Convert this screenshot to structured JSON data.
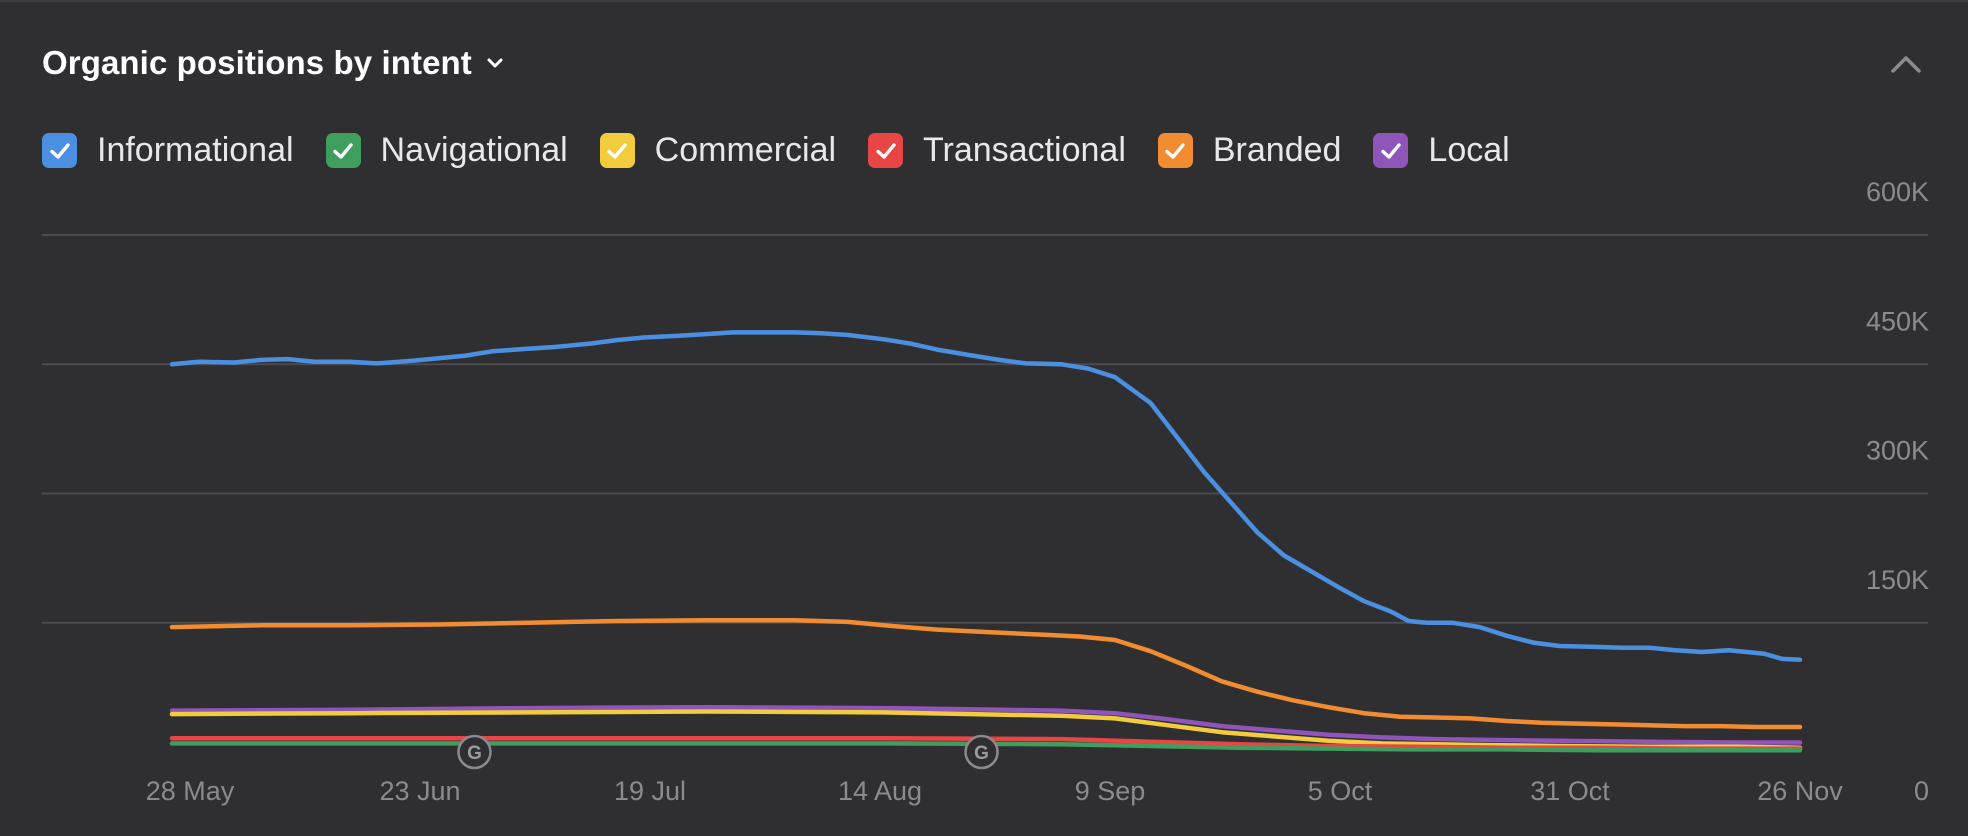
{
  "header": {
    "title": "Organic positions by intent"
  },
  "legend": [
    {
      "label": "Informational",
      "color": "#4a8fe0"
    },
    {
      "label": "Navigational",
      "color": "#3f9d5e"
    },
    {
      "label": "Commercial",
      "color": "#f2cc3c"
    },
    {
      "label": "Transactional",
      "color": "#e84545"
    },
    {
      "label": "Branded",
      "color": "#f28c30"
    },
    {
      "label": "Local",
      "color": "#8f55b8"
    }
  ],
  "chart_data": {
    "type": "line",
    "title": "Organic positions by intent",
    "x_labels": [
      "28 May",
      "23 Jun",
      "19 Jul",
      "14 Aug",
      "9 Sep",
      "5 Oct",
      "31 Oct",
      "26 Nov"
    ],
    "x_range": [
      0,
      183
    ],
    "ylim": [
      0,
      600000
    ],
    "y_ticks": [
      0,
      150000,
      300000,
      450000,
      600000
    ],
    "y_tick_labels": [
      "0",
      "150K",
      "300K",
      "450K",
      "600K"
    ],
    "grid": true,
    "annotations": [
      {
        "label": "G",
        "day": 34,
        "note": "Google update"
      },
      {
        "label": "G",
        "day": 91,
        "note": "Google update"
      }
    ],
    "series": [
      {
        "name": "Informational",
        "color": "#4a8fe0",
        "points": [
          [
            0,
            450000
          ],
          [
            3,
            453000
          ],
          [
            7,
            452000
          ],
          [
            10,
            455000
          ],
          [
            13,
            456000
          ],
          [
            16,
            453000
          ],
          [
            20,
            453000
          ],
          [
            23,
            451000
          ],
          [
            27,
            454000
          ],
          [
            30,
            457000
          ],
          [
            33,
            460000
          ],
          [
            36,
            465000
          ],
          [
            40,
            468000
          ],
          [
            43,
            470000
          ],
          [
            47,
            474000
          ],
          [
            50,
            478000
          ],
          [
            53,
            481000
          ],
          [
            57,
            483000
          ],
          [
            60,
            485000
          ],
          [
            63,
            487000
          ],
          [
            66,
            487000
          ],
          [
            70,
            487000
          ],
          [
            73,
            486000
          ],
          [
            76,
            484000
          ],
          [
            80,
            479000
          ],
          [
            83,
            474000
          ],
          [
            86,
            467000
          ],
          [
            90,
            460000
          ],
          [
            93,
            455000
          ],
          [
            96,
            451000
          ],
          [
            100,
            450000
          ],
          [
            103,
            445000
          ],
          [
            106,
            435000
          ],
          [
            110,
            405000
          ],
          [
            113,
            365000
          ],
          [
            116,
            325000
          ],
          [
            119,
            290000
          ],
          [
            122,
            255000
          ],
          [
            125,
            228000
          ],
          [
            128,
            210000
          ],
          [
            131,
            192000
          ],
          [
            134,
            175000
          ],
          [
            137,
            163000
          ],
          [
            139,
            152000
          ],
          [
            141,
            150000
          ],
          [
            144,
            150000
          ],
          [
            147,
            145000
          ],
          [
            150,
            135000
          ],
          [
            153,
            127000
          ],
          [
            156,
            123000
          ],
          [
            160,
            122000
          ],
          [
            163,
            121000
          ],
          [
            166,
            121000
          ],
          [
            169,
            118000
          ],
          [
            172,
            116000
          ],
          [
            175,
            118000
          ],
          [
            177,
            116000
          ],
          [
            179,
            114000
          ],
          [
            181,
            108000
          ],
          [
            183,
            107000
          ]
        ]
      },
      {
        "name": "Branded",
        "color": "#f28c30",
        "points": [
          [
            0,
            145000
          ],
          [
            10,
            147000
          ],
          [
            20,
            147000
          ],
          [
            30,
            148000
          ],
          [
            40,
            150000
          ],
          [
            50,
            152000
          ],
          [
            60,
            153000
          ],
          [
            70,
            153000
          ],
          [
            76,
            151000
          ],
          [
            80,
            147000
          ],
          [
            86,
            142000
          ],
          [
            92,
            139000
          ],
          [
            98,
            136000
          ],
          [
            102,
            134000
          ],
          [
            106,
            130000
          ],
          [
            110,
            117000
          ],
          [
            114,
            100000
          ],
          [
            118,
            82000
          ],
          [
            122,
            70000
          ],
          [
            126,
            60000
          ],
          [
            130,
            52000
          ],
          [
            134,
            45000
          ],
          [
            138,
            41000
          ],
          [
            142,
            40000
          ],
          [
            146,
            39000
          ],
          [
            150,
            36000
          ],
          [
            154,
            34000
          ],
          [
            158,
            33000
          ],
          [
            162,
            32000
          ],
          [
            166,
            31000
          ],
          [
            170,
            30000
          ],
          [
            174,
            30000
          ],
          [
            178,
            29000
          ],
          [
            183,
            29000
          ]
        ]
      },
      {
        "name": "Local",
        "color": "#8f55b8",
        "points": [
          [
            0,
            48000
          ],
          [
            20,
            49000
          ],
          [
            40,
            51000
          ],
          [
            60,
            52000
          ],
          [
            80,
            51000
          ],
          [
            100,
            48000
          ],
          [
            106,
            45000
          ],
          [
            112,
            38000
          ],
          [
            118,
            30000
          ],
          [
            124,
            25000
          ],
          [
            130,
            20000
          ],
          [
            136,
            17000
          ],
          [
            142,
            15000
          ],
          [
            148,
            14000
          ],
          [
            156,
            13000
          ],
          [
            166,
            12000
          ],
          [
            176,
            11000
          ],
          [
            183,
            11000
          ]
        ]
      },
      {
        "name": "Commercial",
        "color": "#f2cc3c",
        "points": [
          [
            0,
            44000
          ],
          [
            20,
            45000
          ],
          [
            40,
            46000
          ],
          [
            60,
            47000
          ],
          [
            80,
            46000
          ],
          [
            100,
            42000
          ],
          [
            106,
            39000
          ],
          [
            112,
            31000
          ],
          [
            118,
            23000
          ],
          [
            124,
            18000
          ],
          [
            130,
            13000
          ],
          [
            136,
            10000
          ],
          [
            142,
            9000
          ],
          [
            148,
            8000
          ],
          [
            156,
            7000
          ],
          [
            166,
            6000
          ],
          [
            176,
            6000
          ],
          [
            183,
            5000
          ]
        ]
      },
      {
        "name": "Transactional",
        "color": "#e84545",
        "points": [
          [
            0,
            16000
          ],
          [
            40,
            16000
          ],
          [
            80,
            16000
          ],
          [
            100,
            15000
          ],
          [
            110,
            12000
          ],
          [
            120,
            9000
          ],
          [
            130,
            7000
          ],
          [
            140,
            6000
          ],
          [
            150,
            5000
          ],
          [
            160,
            5000
          ],
          [
            170,
            4000
          ],
          [
            183,
            4000
          ]
        ]
      },
      {
        "name": "Navigational",
        "color": "#3f9d5e",
        "points": [
          [
            0,
            10000
          ],
          [
            40,
            10000
          ],
          [
            80,
            10000
          ],
          [
            100,
            9000
          ],
          [
            110,
            7000
          ],
          [
            120,
            5000
          ],
          [
            130,
            4000
          ],
          [
            140,
            3000
          ],
          [
            150,
            3000
          ],
          [
            160,
            2000
          ],
          [
            170,
            2000
          ],
          [
            183,
            2000
          ]
        ]
      }
    ]
  }
}
